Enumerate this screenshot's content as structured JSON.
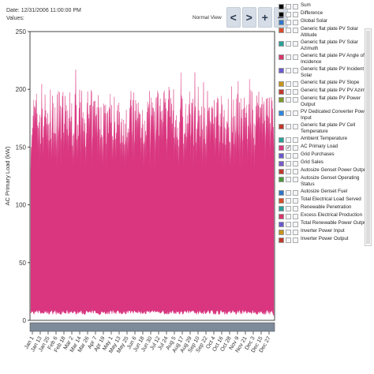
{
  "header": {
    "date_label": "Date:",
    "date_value": "12/31/2006 11:00:00 PM",
    "values_label": "Values:"
  },
  "view": {
    "label": "Normal View",
    "buttons": [
      {
        "glyph": "<",
        "name": "pan-left-button"
      },
      {
        "glyph": ">",
        "name": "pan-right-button"
      },
      {
        "glyph": "+",
        "name": "zoom-in-button"
      },
      {
        "glyph": "−",
        "name": "zoom-out-button"
      }
    ]
  },
  "legend": {
    "items": [
      {
        "label": "Sum",
        "color": "#000000",
        "checked": false
      },
      {
        "label": "Difference",
        "color": "#000000",
        "checked": false
      },
      {
        "label": "Global Solar",
        "color": "#2e75c8",
        "checked": false
      },
      {
        "label": "Generic flat plate PV Solar Altitude",
        "color": "#d94b2a",
        "checked": false
      },
      {
        "label": "Generic flat plate PV Solar Azimuth",
        "color": "#2aa198",
        "checked": false
      },
      {
        "label": "Generic flat plate PV Angle of Incidence",
        "color": "#d9366b",
        "checked": false
      },
      {
        "label": "Generic flat plate PV Incident Solar",
        "color": "#6a5acd",
        "checked": false
      },
      {
        "label": "Generic flat plate PV Slope",
        "color": "#c8941e",
        "checked": false
      },
      {
        "label": "Generic flat plate PV PV Azimuth",
        "color": "#c0392b",
        "checked": false
      },
      {
        "label": "Generic flat plate PV Power Output",
        "color": "#7a9a2a",
        "checked": false
      },
      {
        "label": "PV Dedicated Converter Power Input",
        "color": "#2e86de",
        "checked": false
      },
      {
        "label": "Generic flat plate PV Cell Temperature",
        "color": "#c0392b",
        "checked": false
      },
      {
        "label": "Ambient Temperature",
        "color": "#2aa198",
        "checked": false
      },
      {
        "label": "AC Primary Load",
        "color": "#d9367f",
        "checked": true
      },
      {
        "label": "Grid Purchases",
        "color": "#6a5acd",
        "checked": false
      },
      {
        "label": "Grid Sales",
        "color": "#7a5ac8",
        "checked": false
      },
      {
        "label": "Autosize Genset Power Output",
        "color": "#c0392b",
        "checked": false
      },
      {
        "label": "Autosize Genset Operating Status",
        "color": "#4a9a3a",
        "checked": false
      },
      {
        "label": "Autosize Genset Fuel",
        "color": "#2e75c8",
        "checked": false
      },
      {
        "label": "Total Electrical Load Served",
        "color": "#d94b2a",
        "checked": false
      },
      {
        "label": "Renewable Penetration",
        "color": "#2aa198",
        "checked": false
      },
      {
        "label": "Excess Electrical Production",
        "color": "#d9366b",
        "checked": false
      },
      {
        "label": "Total Renewable Power Output",
        "color": "#6a5acd",
        "checked": false
      },
      {
        "label": "Inverter Power Input",
        "color": "#c8941e",
        "checked": false
      },
      {
        "label": "Inverter Power Output",
        "color": "#c0392b",
        "checked": false
      }
    ]
  },
  "chart_data": {
    "type": "area",
    "ylabel": "AC Primary Load (kW)",
    "xlabel": "",
    "ylim": [
      0,
      250
    ],
    "yticks": [
      0,
      50,
      100,
      150,
      200,
      250
    ],
    "xticks": [
      "Jan 1",
      "Jan 13",
      "Jan 25",
      "Feb 6",
      "Feb 18",
      "Mar 2",
      "Mar 14",
      "Mar 26",
      "Apr 7",
      "Apr 19",
      "May 1",
      "May 13",
      "May 25",
      "Jun 6",
      "Jun 18",
      "Jun 30",
      "Jul 12",
      "Jul 24",
      "Aug 5",
      "Aug 17",
      "Aug 29",
      "Sep 10",
      "Sep 22",
      "Oct 4",
      "Oct 16",
      "Oct 28",
      "Nov 9",
      "Nov 21",
      "Dec 3",
      "Dec 15",
      "Dec 27"
    ],
    "series": [
      {
        "name": "AC Primary Load",
        "color": "#d9367f",
        "daily_envelope": {
          "min_approx": 5,
          "typical_peak_range": [
            150,
            200
          ],
          "max_peak": 223
        }
      }
    ],
    "grid": false,
    "legend": "right"
  }
}
